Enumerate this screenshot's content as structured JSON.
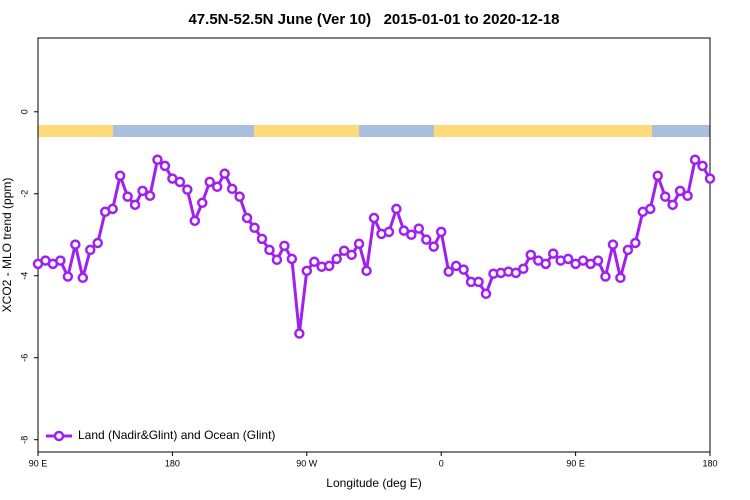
{
  "chart_data": {
    "type": "line",
    "title": "47.5N-52.5N June (Ver 10)   2015-01-01 to 2020-12-18",
    "xlabel": "Longitude (deg E)",
    "ylabel": "XCO2 - MLO trend (ppm)",
    "x": [
      90,
      95,
      100,
      105,
      110,
      115,
      120,
      125,
      130,
      135,
      140,
      145,
      150,
      155,
      160,
      165,
      170,
      175,
      180,
      185,
      190,
      195,
      200,
      205,
      210,
      215,
      220,
      225,
      230,
      235,
      240,
      245,
      250,
      255,
      260,
      265,
      270,
      275,
      280,
      285,
      290,
      295,
      300,
      305,
      310,
      315,
      320,
      325,
      330,
      335,
      340,
      345,
      350,
      355,
      360,
      365,
      370,
      375,
      380,
      385,
      390,
      395,
      400,
      405,
      410,
      415,
      420,
      425,
      430,
      435,
      440,
      445,
      450,
      455,
      460,
      465,
      470,
      475,
      480,
      485,
      490,
      495,
      500,
      505,
      510,
      515,
      520,
      525,
      530,
      535,
      540
    ],
    "series": [
      {
        "name": "Land (Nadir&Glint) and Ocean (Glint)",
        "color": "#a020f0",
        "values": [
          -3.71,
          -3.63,
          -3.71,
          -3.63,
          -4.02,
          -3.24,
          -4.05,
          -3.37,
          -3.2,
          -2.44,
          -2.37,
          -1.56,
          -2.07,
          -2.27,
          -1.93,
          -2.05,
          -1.17,
          -1.32,
          -1.63,
          -1.71,
          -1.9,
          -2.66,
          -2.22,
          -1.71,
          -1.83,
          -1.51,
          -1.88,
          -2.07,
          -2.59,
          -2.83,
          -3.1,
          -3.37,
          -3.61,
          -3.27,
          -3.59,
          -5.41,
          -3.88,
          -3.66,
          -3.78,
          -3.76,
          -3.59,
          -3.39,
          -3.49,
          -3.22,
          -3.88,
          -2.59,
          -2.98,
          -2.93,
          -2.37,
          -2.9,
          -3.0,
          -2.85,
          -3.12,
          -3.29,
          -2.93,
          -3.9,
          -3.76,
          -3.85,
          -4.15,
          -4.15,
          -4.44,
          -3.95,
          -3.93,
          -3.9,
          -3.93,
          -3.83,
          -3.49,
          -3.63,
          -3.71,
          -3.46,
          -3.63,
          -3.59,
          -3.71,
          -3.63,
          -3.71,
          -3.63,
          -4.02,
          -3.24,
          -4.05,
          -3.37,
          -3.2,
          -2.44,
          -2.37,
          -1.56,
          -2.07,
          -2.27,
          -1.93,
          -2.05,
          -1.17,
          -1.32,
          -1.63
        ]
      }
    ],
    "xlim": [
      90,
      540
    ],
    "xticks": [
      {
        "value": 90,
        "label": "90 E"
      },
      180,
      {
        "value": 270,
        "label": "90 W"
      },
      {
        "value": 360,
        "label": "0"
      },
      {
        "value": 450,
        "label": "90 E"
      },
      {
        "value": 540,
        "label": "180"
      }
    ],
    "ylim": [
      -8.3,
      1.8
    ],
    "yticks": [
      0,
      -2,
      -4,
      -6,
      -8
    ],
    "legend": "lower left"
  }
}
